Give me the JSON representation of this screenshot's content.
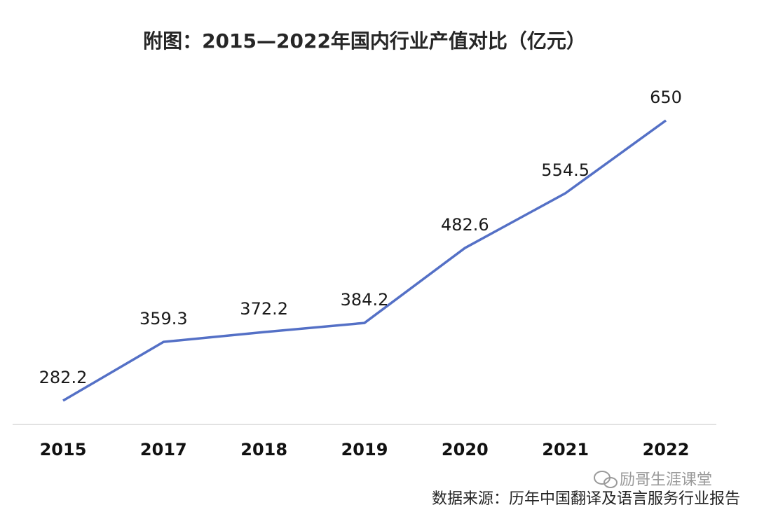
{
  "chart_data": {
    "type": "line",
    "title": "附图：2015—2022年国内行业产值对比（亿元）",
    "categories": [
      "2015",
      "2017",
      "2018",
      "2019",
      "2020",
      "2021",
      "2022"
    ],
    "series": [
      {
        "values": [
          282.2,
          359.3,
          372.2,
          384.2,
          482.6,
          554.5,
          650
        ]
      }
    ],
    "data_labels": [
      "282.2",
      "359.3",
      "372.2",
      "384.2",
      "482.6",
      "554.5",
      "650"
    ],
    "ylim": [
      220,
      720
    ],
    "grid": false,
    "legend": "none",
    "line_color": "#5470c6"
  },
  "watermark": "励哥生涯课堂",
  "source": "数据来源：历年中国翻译及语言服务行业报告"
}
